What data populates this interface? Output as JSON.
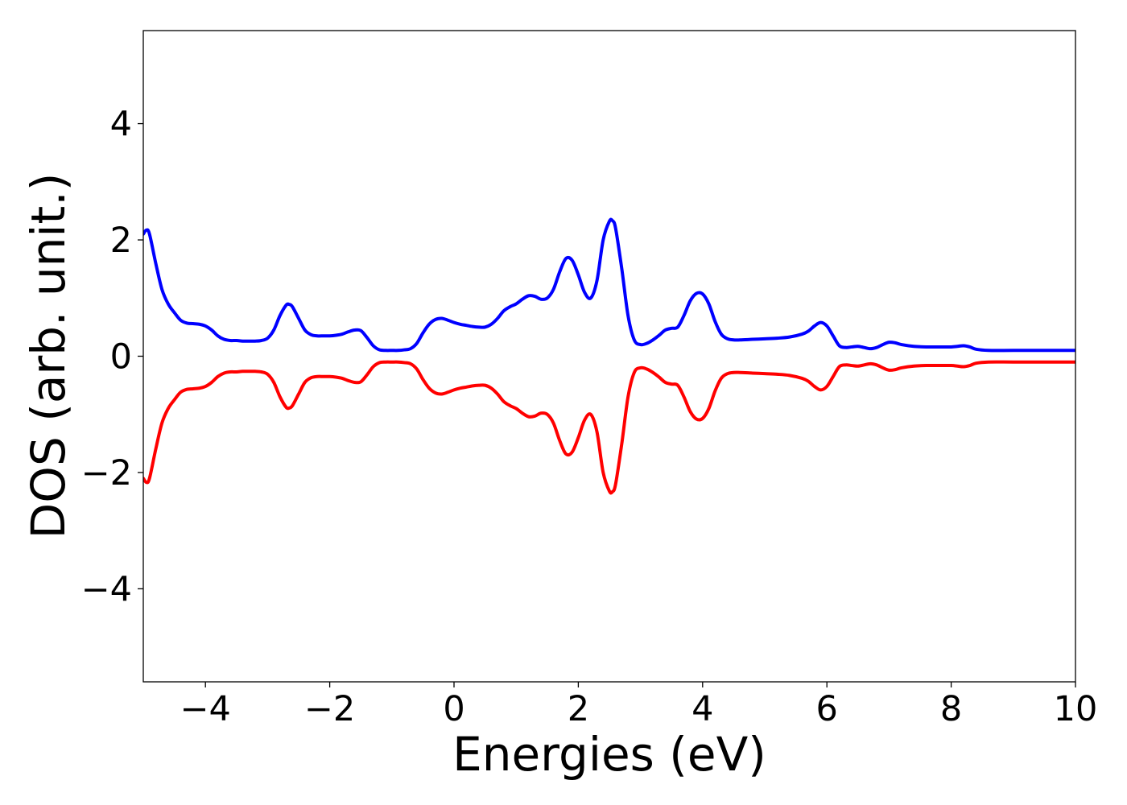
{
  "chart_data": {
    "type": "line",
    "title": "",
    "xlabel": "Energies (eV)",
    "ylabel": "DOS (arb. unit.)",
    "xlim": [
      -5,
      10
    ],
    "ylim": [
      -5.6,
      5.6
    ],
    "xticks": [
      -4,
      -2,
      0,
      2,
      4,
      6,
      8,
      10
    ],
    "xtick_labels": [
      "−4",
      "−2",
      "0",
      "2",
      "4",
      "6",
      "8",
      "10"
    ],
    "yticks": [
      -4,
      -2,
      0,
      2,
      4
    ],
    "ytick_labels": [
      "−4",
      "−2",
      "0",
      "2",
      "4"
    ],
    "grid": false,
    "legend": "none",
    "colors": {
      "spin_up": "#0000ff",
      "spin_down": "#ff0000"
    },
    "x": [
      -5.0,
      -4.95,
      -4.9,
      -4.8,
      -4.7,
      -4.6,
      -4.5,
      -4.4,
      -4.3,
      -4.2,
      -4.1,
      -4.0,
      -3.9,
      -3.8,
      -3.7,
      -3.6,
      -3.5,
      -3.4,
      -3.3,
      -3.2,
      -3.1,
      -3.0,
      -2.9,
      -2.8,
      -2.7,
      -2.65,
      -2.6,
      -2.5,
      -2.4,
      -2.3,
      -2.2,
      -2.1,
      -2.0,
      -1.9,
      -1.8,
      -1.7,
      -1.6,
      -1.5,
      -1.4,
      -1.3,
      -1.2,
      -1.1,
      -1.0,
      -0.9,
      -0.8,
      -0.7,
      -0.6,
      -0.5,
      -0.4,
      -0.3,
      -0.2,
      -0.1,
      0.0,
      0.1,
      0.2,
      0.3,
      0.4,
      0.5,
      0.6,
      0.7,
      0.8,
      0.9,
      1.0,
      1.1,
      1.2,
      1.3,
      1.4,
      1.5,
      1.6,
      1.7,
      1.8,
      1.9,
      2.0,
      2.1,
      2.2,
      2.3,
      2.4,
      2.5,
      2.55,
      2.6,
      2.7,
      2.8,
      2.9,
      3.0,
      3.1,
      3.2,
      3.3,
      3.4,
      3.5,
      3.6,
      3.7,
      3.8,
      3.9,
      4.0,
      4.1,
      4.2,
      4.3,
      4.4,
      4.5,
      4.6,
      4.8,
      5.0,
      5.2,
      5.4,
      5.6,
      5.7,
      5.8,
      5.9,
      6.0,
      6.1,
      6.2,
      6.3,
      6.4,
      6.5,
      6.6,
      6.7,
      6.8,
      6.9,
      7.0,
      7.1,
      7.2,
      7.4,
      7.6,
      7.8,
      8.0,
      8.1,
      8.2,
      8.3,
      8.4,
      8.6,
      9.0,
      9.5,
      10.0
    ],
    "series": [
      {
        "key": "spin_up",
        "values": [
          2.1,
          2.17,
          2.1,
          1.6,
          1.15,
          0.9,
          0.75,
          0.62,
          0.57,
          0.56,
          0.55,
          0.52,
          0.45,
          0.35,
          0.29,
          0.27,
          0.27,
          0.26,
          0.26,
          0.26,
          0.27,
          0.31,
          0.45,
          0.7,
          0.88,
          0.89,
          0.85,
          0.65,
          0.45,
          0.37,
          0.35,
          0.35,
          0.35,
          0.36,
          0.38,
          0.42,
          0.45,
          0.44,
          0.32,
          0.18,
          0.11,
          0.1,
          0.1,
          0.1,
          0.11,
          0.13,
          0.22,
          0.4,
          0.55,
          0.63,
          0.65,
          0.62,
          0.58,
          0.55,
          0.53,
          0.51,
          0.5,
          0.5,
          0.55,
          0.65,
          0.78,
          0.85,
          0.9,
          0.98,
          1.04,
          1.03,
          0.98,
          1.0,
          1.15,
          1.45,
          1.68,
          1.65,
          1.4,
          1.1,
          1.0,
          1.3,
          2.0,
          2.32,
          2.33,
          2.2,
          1.5,
          0.7,
          0.28,
          0.2,
          0.22,
          0.28,
          0.36,
          0.45,
          0.48,
          0.5,
          0.7,
          0.95,
          1.08,
          1.07,
          0.9,
          0.6,
          0.38,
          0.3,
          0.28,
          0.28,
          0.29,
          0.3,
          0.31,
          0.33,
          0.38,
          0.43,
          0.52,
          0.58,
          0.52,
          0.35,
          0.18,
          0.15,
          0.16,
          0.17,
          0.15,
          0.13,
          0.15,
          0.2,
          0.24,
          0.23,
          0.2,
          0.17,
          0.16,
          0.16,
          0.16,
          0.17,
          0.18,
          0.16,
          0.12,
          0.1,
          0.1,
          0.1,
          0.1
        ]
      },
      {
        "key": "spin_down",
        "values": [
          -2.1,
          -2.17,
          -2.1,
          -1.6,
          -1.15,
          -0.9,
          -0.75,
          -0.62,
          -0.57,
          -0.56,
          -0.55,
          -0.52,
          -0.45,
          -0.35,
          -0.29,
          -0.27,
          -0.27,
          -0.26,
          -0.26,
          -0.26,
          -0.27,
          -0.31,
          -0.45,
          -0.7,
          -0.88,
          -0.89,
          -0.85,
          -0.65,
          -0.45,
          -0.37,
          -0.35,
          -0.35,
          -0.35,
          -0.36,
          -0.38,
          -0.42,
          -0.45,
          -0.44,
          -0.32,
          -0.18,
          -0.11,
          -0.1,
          -0.1,
          -0.1,
          -0.11,
          -0.13,
          -0.22,
          -0.4,
          -0.55,
          -0.63,
          -0.65,
          -0.62,
          -0.58,
          -0.55,
          -0.53,
          -0.51,
          -0.5,
          -0.5,
          -0.55,
          -0.65,
          -0.78,
          -0.85,
          -0.9,
          -0.98,
          -1.04,
          -1.03,
          -0.98,
          -1.0,
          -1.15,
          -1.45,
          -1.68,
          -1.65,
          -1.4,
          -1.1,
          -1.0,
          -1.3,
          -2.0,
          -2.32,
          -2.33,
          -2.2,
          -1.5,
          -0.7,
          -0.28,
          -0.2,
          -0.22,
          -0.28,
          -0.36,
          -0.45,
          -0.48,
          -0.5,
          -0.7,
          -0.95,
          -1.08,
          -1.07,
          -0.9,
          -0.6,
          -0.38,
          -0.3,
          -0.28,
          -0.28,
          -0.29,
          -0.3,
          -0.31,
          -0.33,
          -0.38,
          -0.43,
          -0.52,
          -0.58,
          -0.52,
          -0.35,
          -0.18,
          -0.15,
          -0.16,
          -0.17,
          -0.15,
          -0.13,
          -0.15,
          -0.2,
          -0.24,
          -0.23,
          -0.2,
          -0.17,
          -0.16,
          -0.16,
          -0.16,
          -0.17,
          -0.18,
          -0.16,
          -0.12,
          -0.1,
          -0.1,
          -0.1,
          -0.1
        ]
      }
    ]
  }
}
